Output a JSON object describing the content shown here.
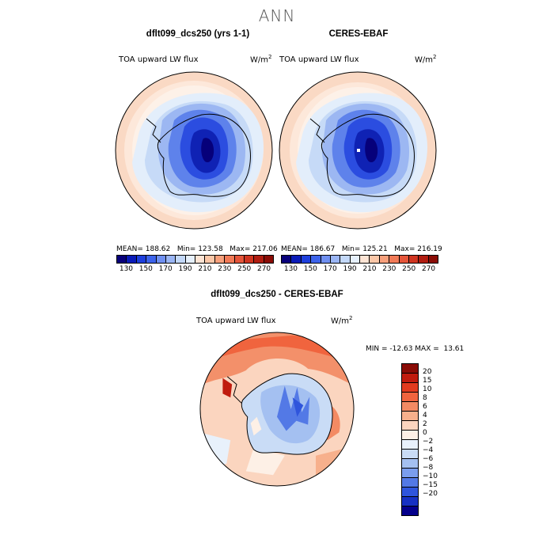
{
  "title": "ANN",
  "panels": [
    {
      "title": "dflt099_dcs250 (yrs 1-1)",
      "variable": "TOA upward LW flux",
      "units": "W/m",
      "units_sup": "2",
      "stats": "MEAN= 188.62   Min= 123.58   Max= 217.06"
    },
    {
      "title": "CERES-EBAF",
      "variable": "TOA upward LW flux",
      "units": "W/m",
      "units_sup": "2",
      "stats": "MEAN= 186.67   Min= 125.21   Max= 216.19"
    }
  ],
  "shared_colorbar": {
    "colors": [
      "#08007a",
      "#0a1bb8",
      "#1e3fdc",
      "#3d63ea",
      "#6f8ff0",
      "#9ab5f4",
      "#c3d8f8",
      "#e6f0fc",
      "#fde4d4",
      "#fbc7a8",
      "#f7a07c",
      "#f17a57",
      "#e5553a",
      "#cf3420",
      "#b01c10",
      "#8a0c06"
    ],
    "labels": [
      "130",
      "150",
      "170",
      "190",
      "210",
      "230",
      "250",
      "270"
    ]
  },
  "difference": {
    "title": "dflt099_dcs250 - CERES-EBAF",
    "variable": "TOA upward LW flux",
    "units": "W/m",
    "units_sup": "2",
    "minmax": "MIN = -12.63 MAX =  13.61",
    "colors": [
      "#8a0c06",
      "#c01b0e",
      "#e23b1f",
      "#f0643e",
      "#f38a63",
      "#f7b08c",
      "#fbd5bf",
      "#fdf0e6",
      "#e8f1fb",
      "#c9dcf6",
      "#a4c0f1",
      "#7a9ded",
      "#5379e6",
      "#2f55dc",
      "#1731c3",
      "#05008c"
    ],
    "labels": [
      "20",
      "15",
      "10",
      "8",
      "6",
      "4",
      "2",
      "0",
      "−2",
      "−4",
      "−6",
      "−8",
      "−10",
      "−15",
      "−20"
    ]
  }
}
